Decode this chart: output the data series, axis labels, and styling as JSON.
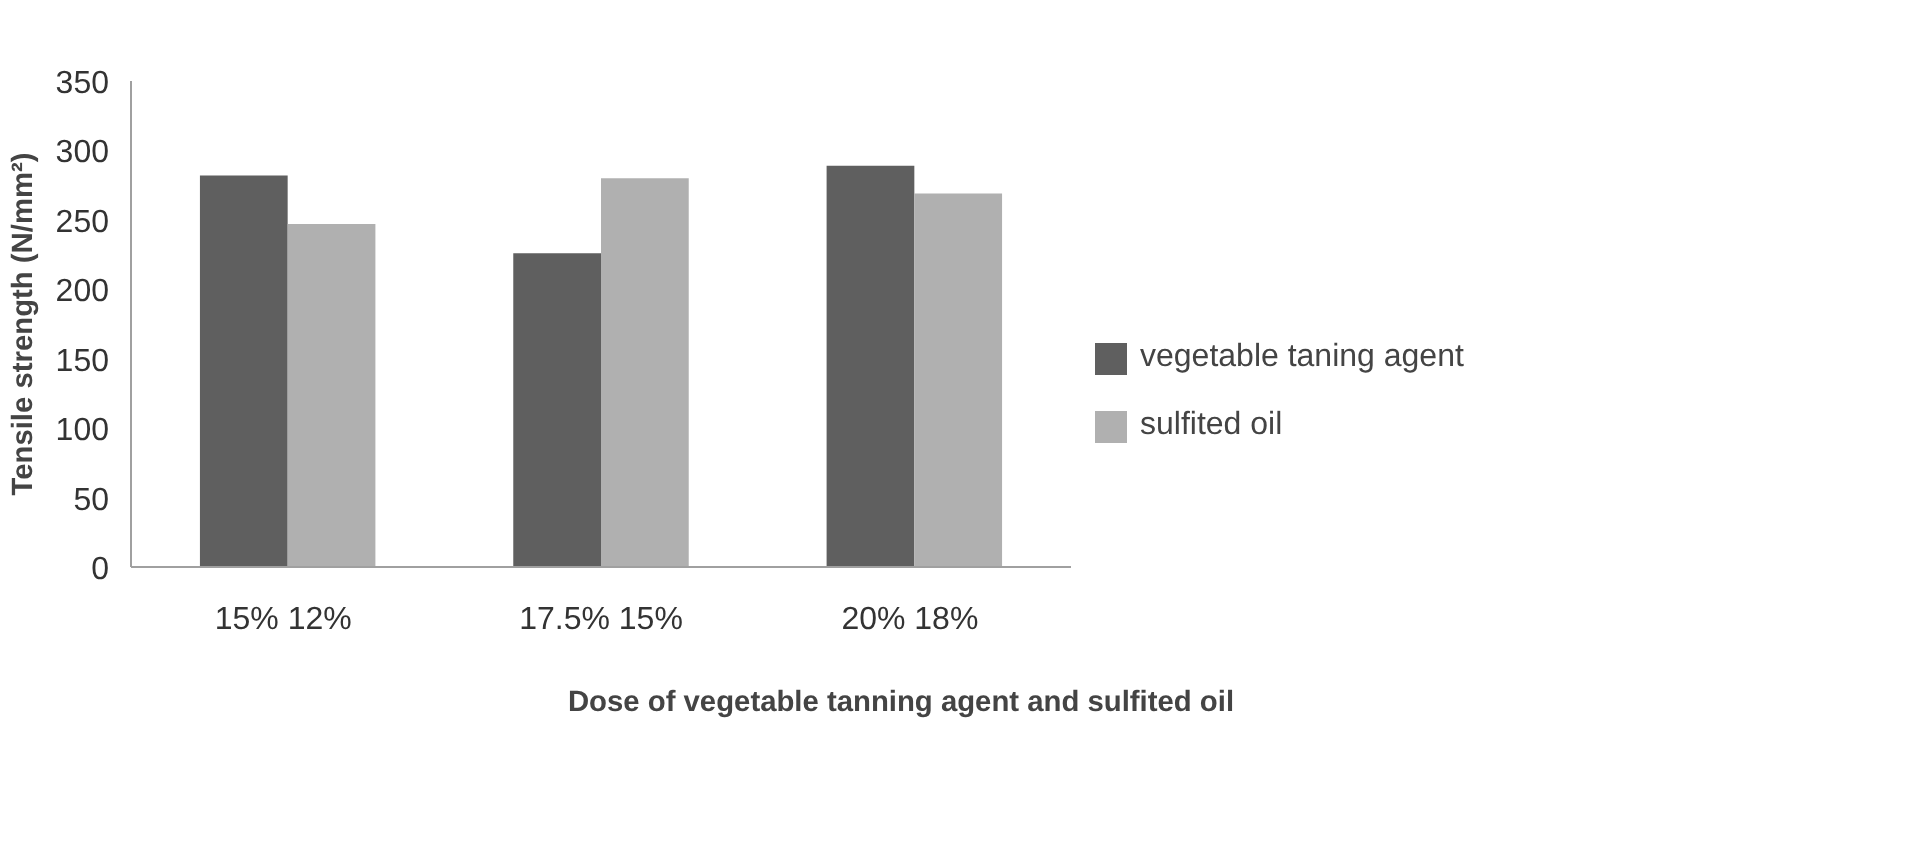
{
  "chart_data": {
    "type": "bar",
    "xlabel": "Dose of vegetable tanning agent and sulfited oil",
    "ylabel": "Tensile strength (N/mm²)",
    "categories": [
      "15%  12%",
      "17.5% 15%",
      "20%  18%"
    ],
    "series": [
      {
        "name": "vegetable taning agent",
        "color": "#5f5f5f",
        "values": [
          282,
          226,
          289
        ]
      },
      {
        "name": "sulfited oil",
        "color": "#b0b0b0",
        "values": [
          247,
          280,
          269
        ]
      }
    ],
    "ylim": [
      0,
      350
    ],
    "yticks": [
      0,
      50,
      100,
      150,
      200,
      250,
      300,
      350
    ],
    "grid": false,
    "legend": "right"
  }
}
